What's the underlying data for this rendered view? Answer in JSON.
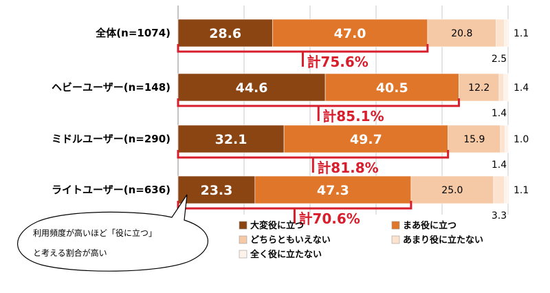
{
  "chart_data": {
    "type": "bar",
    "orientation": "horizontal-stacked-100",
    "categories": [
      "全体(n=1074)",
      "ヘビーユーザー(n=148)",
      "ミドルユーザー(n=290)",
      "ライトユーザー(n=636)"
    ],
    "series": [
      {
        "name": "大変役に立つ",
        "color": "#8b4513",
        "values": [
          28.6,
          44.6,
          32.1,
          23.3
        ]
      },
      {
        "name": "まあ役に立つ",
        "color": "#e0762a",
        "values": [
          47.0,
          40.5,
          49.7,
          47.3
        ]
      },
      {
        "name": "どちらともいえない",
        "color": "#f5c9a5",
        "values": [
          20.8,
          12.2,
          15.9,
          25.0
        ]
      },
      {
        "name": "あまり役に立たない",
        "color": "#fbe3cf",
        "values": [
          2.5,
          1.4,
          1.4,
          3.3
        ]
      },
      {
        "name": "全く役に立たない",
        "color": "#fdf3ea",
        "values": [
          1.1,
          1.4,
          1.0,
          1.1
        ]
      }
    ],
    "value_labels": [
      [
        "28.6",
        "47.0",
        "20.8",
        "2.5",
        "1.1"
      ],
      [
        "44.6",
        "40.5",
        "12.2",
        "1.4",
        "1.4"
      ],
      [
        "32.1",
        "49.7",
        "15.9",
        "1.4",
        "1.0"
      ],
      [
        "23.3",
        "47.3",
        "25.0",
        "3.3",
        "1.1"
      ]
    ],
    "totals": [
      "計75.6%",
      "計85.1%",
      "計81.8%",
      "計70.6%"
    ],
    "legend_position": "bottom",
    "grid": true,
    "annotation": {
      "lines": [
        "利用頻度が高いほど「役に立つ」",
        "と考える割合が高い"
      ]
    }
  }
}
